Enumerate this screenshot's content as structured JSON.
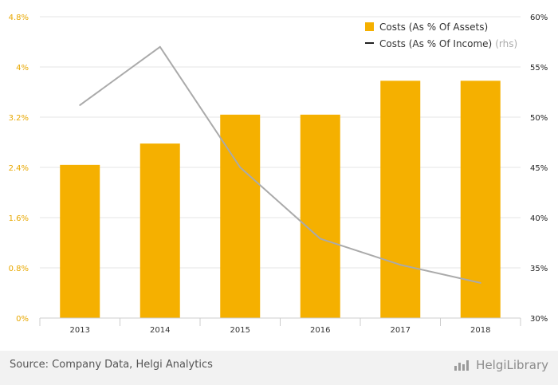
{
  "chart_data": {
    "type": "bar",
    "categories": [
      "2013",
      "2014",
      "2015",
      "2016",
      "2017",
      "2018"
    ],
    "series": [
      {
        "name": "Costs (As % Of Assets)",
        "type": "bar",
        "axis": "left",
        "values": [
          2.44,
          2.78,
          3.24,
          3.24,
          3.78,
          3.78
        ],
        "color": "#f5b000"
      },
      {
        "name": "Costs (As % Of Income)",
        "name_suffix": "(rhs)",
        "type": "line",
        "axis": "right",
        "values": [
          51.2,
          57.0,
          45.0,
          37.9,
          35.3,
          33.5
        ],
        "color": "#aaaaaa"
      }
    ],
    "left_axis": {
      "ylim": [
        0,
        4.8
      ],
      "ticks": [
        "0%",
        "0.8%",
        "1.6%",
        "2.4%",
        "3.2%",
        "4%",
        "4.8%"
      ],
      "color": "#e8a800"
    },
    "right_axis": {
      "ylim": [
        30,
        60
      ],
      "ticks": [
        "30%",
        "35%",
        "40%",
        "45%",
        "50%",
        "55%",
        "60%"
      ]
    },
    "grid": true,
    "legend": "top-right"
  },
  "footer": {
    "source": "Source: Company Data, Helgi Analytics",
    "brand": "HelgiLibrary",
    "brand_icon": "bar-chart-icon"
  }
}
